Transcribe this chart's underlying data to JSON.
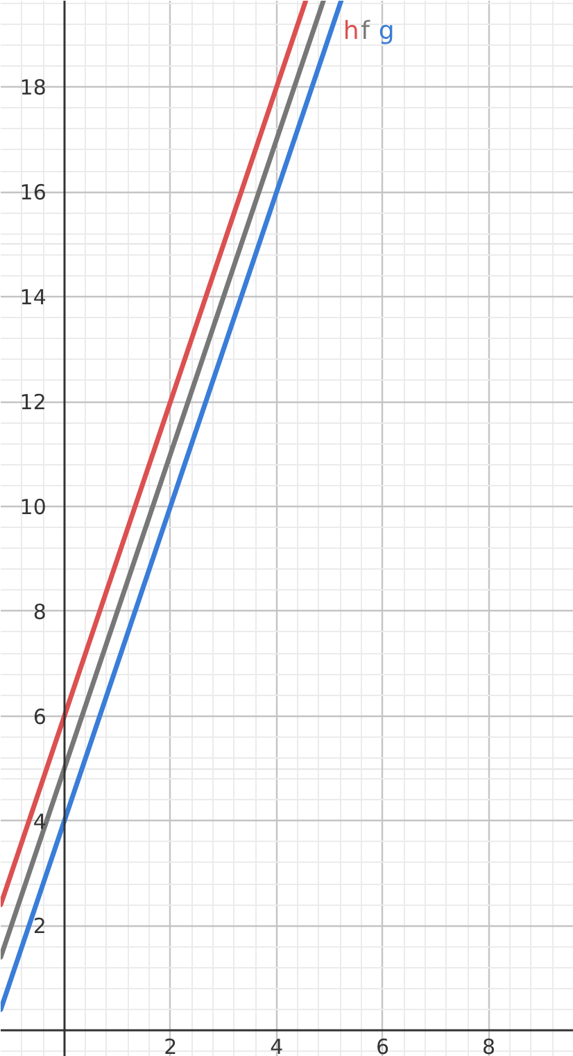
{
  "chart_data": {
    "type": "line",
    "series": [
      {
        "name": "h",
        "color": "#dc5050",
        "x": [
          -1.2,
          4.55
        ],
        "values": [
          2.4,
          19.65
        ]
      },
      {
        "name": "f",
        "color": "#777777",
        "x": [
          -1.2,
          4.883
        ],
        "values": [
          1.4,
          19.65
        ]
      },
      {
        "name": "g",
        "color": "#3a7dd8",
        "x": [
          -1.2,
          5.217
        ],
        "values": [
          0.4,
          19.65
        ]
      }
    ],
    "xlim": [
      -1.2,
      9.6
    ],
    "ylim": [
      -0.5,
      19.65
    ],
    "xticks": [
      2,
      4,
      6,
      8
    ],
    "yticks": [
      2,
      4,
      6,
      8,
      10,
      12,
      14,
      16,
      18
    ],
    "grid": true,
    "line_style": "solid"
  }
}
